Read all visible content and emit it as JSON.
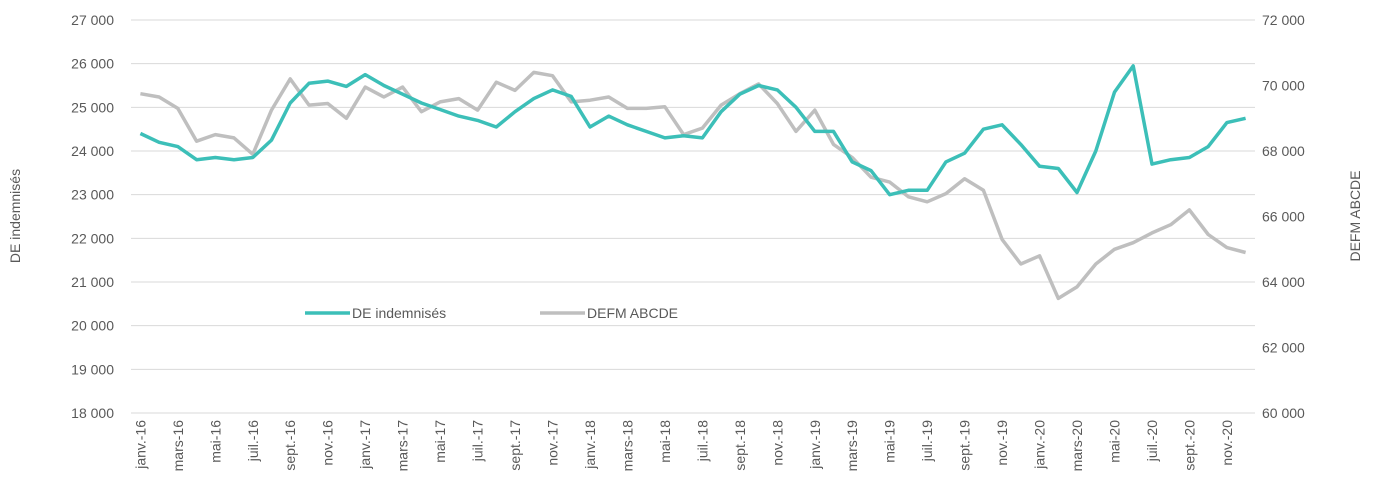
{
  "chart_data": {
    "type": "line",
    "categories": [
      "janv.-16",
      null,
      "mars-16",
      null,
      "mai-16",
      null,
      "juil.-16",
      null,
      "sept.-16",
      null,
      "nov.-16",
      null,
      "janv.-17",
      null,
      "mars-17",
      null,
      "mai-17",
      null,
      "juil.-17",
      null,
      "sept.-17",
      null,
      "nov.-17",
      null,
      "janv.-18",
      null,
      "mars-18",
      null,
      "mai-18",
      null,
      "juil.-18",
      null,
      "sept.-18",
      null,
      "nov.-18",
      null,
      "janv.-19",
      null,
      "mars-19",
      null,
      "mai-19",
      null,
      "juil.-19",
      null,
      "sept.-19",
      null,
      "nov.-19",
      null,
      "janv.-20",
      null,
      "mars-20",
      null,
      "mai-20",
      null,
      "juil.-20",
      null,
      "sept.-20",
      null,
      "nov.-20",
      null
    ],
    "series": [
      {
        "name": "DE indemnisés",
        "color": "#3cbfb8",
        "axis": "y",
        "values": [
          24400,
          24200,
          24100,
          23800,
          23850,
          23800,
          23850,
          24250,
          25100,
          25550,
          25600,
          25480,
          25750,
          25500,
          25300,
          25100,
          24950,
          24800,
          24700,
          24550,
          24900,
          25200,
          25400,
          25250,
          24550,
          24800,
          24600,
          24450,
          24300,
          24350,
          24300,
          24900,
          25300,
          25500,
          25400,
          25000,
          24450,
          24450,
          23750,
          23550,
          23000,
          23100,
          23100,
          23750,
          23950,
          24500,
          24600,
          24150,
          23650,
          23600,
          23050,
          24000,
          25350,
          25950,
          23700,
          23800,
          23850,
          24100,
          24650,
          24750
        ]
      },
      {
        "name": "DEFM ABCDE",
        "color": "#bfbfbf",
        "axis": "y2",
        "values": [
          69750,
          69650,
          69300,
          68300,
          68500,
          68400,
          67900,
          69250,
          70200,
          69400,
          69450,
          69000,
          69950,
          69650,
          69950,
          69200,
          69500,
          69600,
          69250,
          70100,
          69850,
          70400,
          70300,
          69500,
          69550,
          69650,
          69300,
          69300,
          69350,
          68500,
          68700,
          69400,
          69750,
          70050,
          69450,
          68600,
          69250,
          68200,
          67800,
          67200,
          67050,
          66600,
          66450,
          66700,
          67150,
          66800,
          65300,
          64550,
          64800,
          63500,
          63850,
          64550,
          65000,
          65200,
          65500,
          65750,
          66200,
          65450,
          65050,
          64900
        ]
      }
    ],
    "ylabel": "DE indemnisés",
    "y2label": "DEFM ABCDE",
    "ylim": [
      18000,
      27000
    ],
    "yticks": [
      {
        "value": 18000,
        "label": "18 000"
      },
      {
        "value": 19000,
        "label": "19 000"
      },
      {
        "value": 20000,
        "label": "20 000"
      },
      {
        "value": 21000,
        "label": "21 000"
      },
      {
        "value": 22000,
        "label": "22 000"
      },
      {
        "value": 23000,
        "label": "23 000"
      },
      {
        "value": 24000,
        "label": "24 000"
      },
      {
        "value": 25000,
        "label": "25 000"
      },
      {
        "value": 26000,
        "label": "26 000"
      },
      {
        "value": 27000,
        "label": "27 000"
      }
    ],
    "y2lim": [
      60000,
      72000
    ],
    "y2ticks": [
      {
        "value": 60000,
        "label": "60 000"
      },
      {
        "value": 62000,
        "label": "62 000"
      },
      {
        "value": 64000,
        "label": "64 000"
      },
      {
        "value": 66000,
        "label": "66 000"
      },
      {
        "value": 68000,
        "label": "68 000"
      },
      {
        "value": 70000,
        "label": "70 000"
      },
      {
        "value": 72000,
        "label": "72 000"
      }
    ],
    "grid": true
  }
}
